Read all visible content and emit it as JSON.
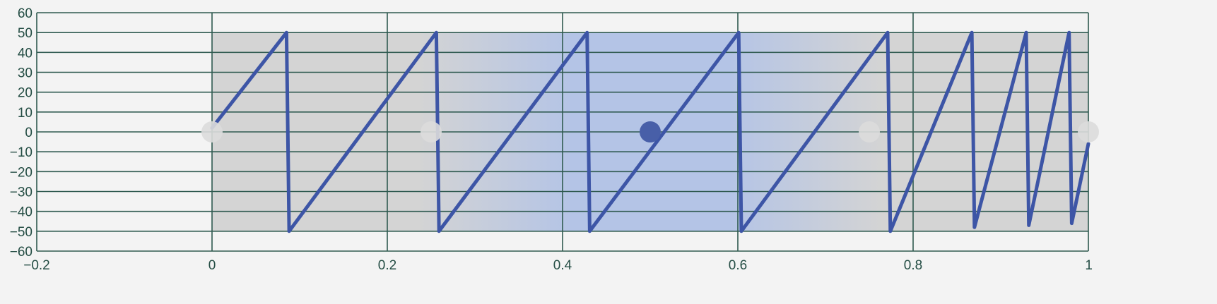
{
  "chart_data": {
    "type": "line",
    "xlim": [
      -0.2,
      1.0
    ],
    "ylim": [
      -60,
      60
    ],
    "x_ticks": [
      -0.2,
      0,
      0.2,
      0.4,
      0.6,
      0.8,
      1
    ],
    "x_tick_labels": [
      "−0.2",
      "0",
      "0.2",
      "0.4",
      "0.6",
      "0.8",
      "1"
    ],
    "y_ticks": [
      60,
      50,
      40,
      30,
      20,
      10,
      0,
      -10,
      -20,
      -30,
      -40,
      -50,
      -60
    ],
    "y_tick_labels": [
      "60",
      "50",
      "40",
      "30",
      "20",
      "10",
      "0",
      "−10",
      "−20",
      "−30",
      "−40",
      "−50",
      "−60"
    ],
    "grid": true,
    "shaded_band": {
      "x": [
        0,
        1
      ],
      "y": [
        -50,
        50
      ],
      "highlight_center_x": 0.5
    },
    "series": [
      {
        "color": "#3d55a6",
        "x": [
          0.0,
          0.085,
          0.088,
          0.256,
          0.259,
          0.428,
          0.431,
          0.601,
          0.604,
          0.771,
          0.774,
          0.867,
          0.87,
          0.929,
          0.932,
          0.978,
          0.981,
          1.0
        ],
        "y": [
          2,
          50,
          -50,
          50,
          -50,
          50,
          -50,
          50,
          -50,
          50,
          -50,
          50,
          -48,
          50,
          -47,
          50,
          -46,
          -6
        ]
      }
    ],
    "control_points": [
      {
        "x": 0.0,
        "y": 0,
        "active": false
      },
      {
        "x": 0.25,
        "y": 0,
        "active": false
      },
      {
        "x": 0.5,
        "y": 0,
        "active": true
      },
      {
        "x": 0.75,
        "y": 0,
        "active": false
      },
      {
        "x": 1.0,
        "y": 0,
        "active": false
      }
    ]
  },
  "colors": {
    "background": "#f3f3f3",
    "band": "#d4d4d4",
    "band_highlight": "#b4c4e6",
    "grid": "#2f5a50",
    "line": "#3d55a6",
    "point_inactive": "#dcdcdc",
    "point_active": "#485fa8",
    "text": "#244d44"
  }
}
